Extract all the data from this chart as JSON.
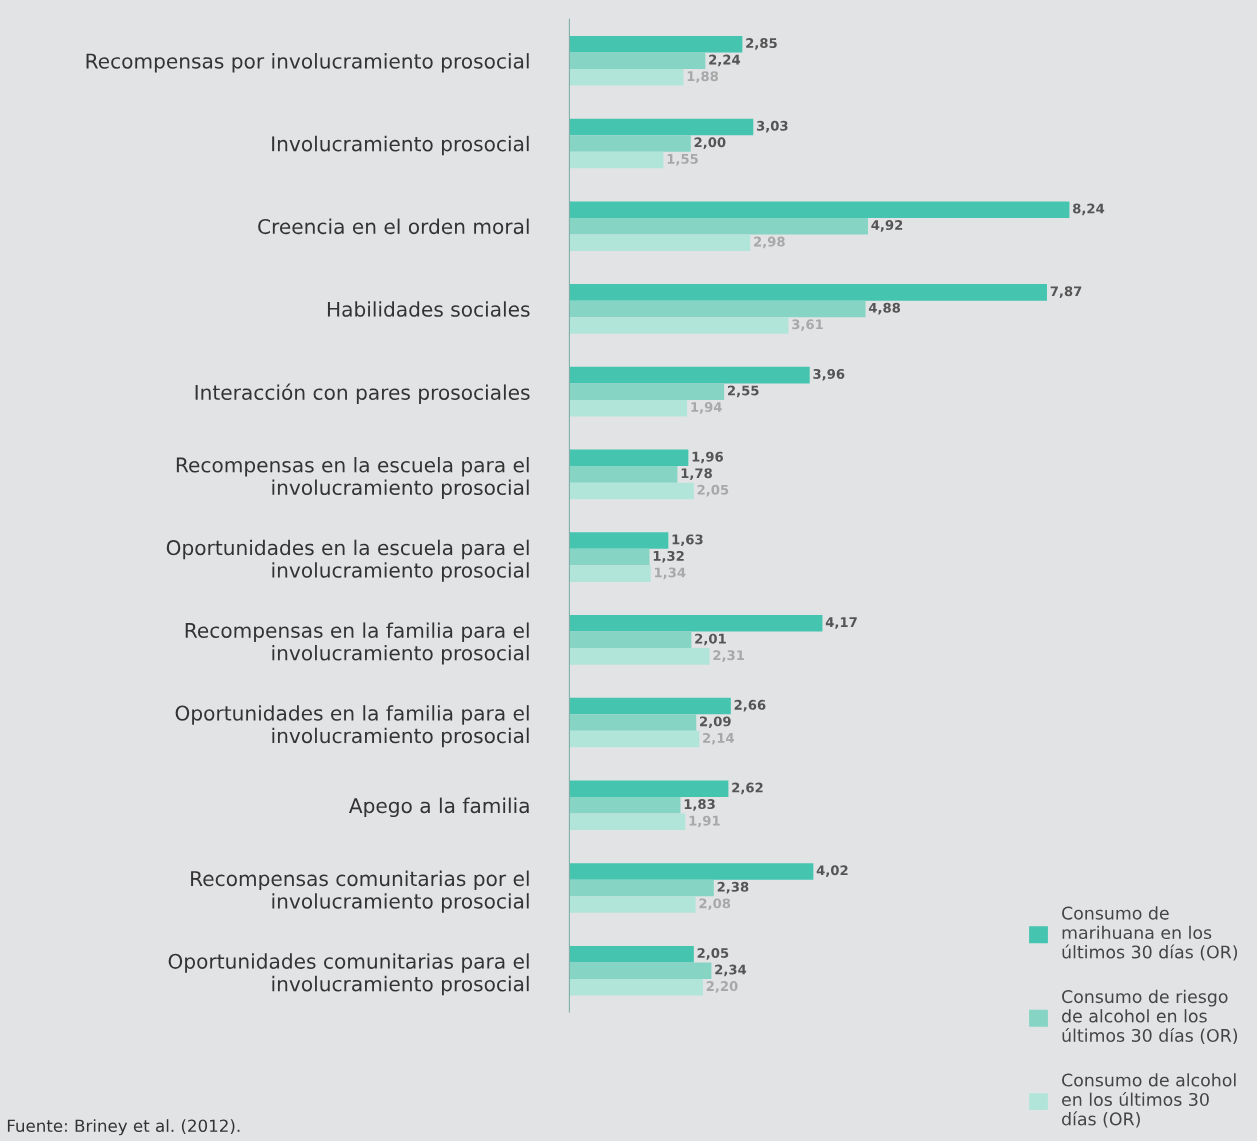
{
  "chart_data": {
    "type": "bar",
    "orientation": "horizontal",
    "categories": [
      "Recompensas por involucramiento prosocial",
      "Involucramiento prosocial",
      "Creencia en el orden moral",
      "Habilidades sociales",
      "Interacción con pares prosociales",
      "Recompensas en la escuela para el\ninvolucramiento prosocial",
      "Oportunidades en la escuela para el\ninvolucramiento prosocial",
      "Recompensas en la familia para el\ninvolucramiento prosocial",
      "Oportunidades en la familia para el\ninvolucramiento prosocial",
      "Apego a la familia",
      "Recompensas comunitarias por el\ninvolucramiento prosocial",
      "Oportunidades comunitarias para el\ninvolucramiento prosocial"
    ],
    "series": [
      {
        "name": "Consumo de\nmarihuana en los\núltimos 30 días (OR)",
        "color": "#45c4b0",
        "values": [
          2.85,
          3.03,
          8.24,
          7.87,
          3.96,
          1.96,
          1.63,
          4.17,
          2.66,
          2.62,
          4.02,
          2.05
        ],
        "value_labels": [
          "2,85",
          "3,03",
          "8,24",
          "7,87",
          "3,96",
          "1,96",
          "1,63",
          "4,17",
          "2,66",
          "2,62",
          "4,02",
          "2,05"
        ]
      },
      {
        "name": "Consumo de riesgo\nde alcohol en los\núltimos 30 días (OR)",
        "color": "#86d5c4",
        "values": [
          2.24,
          2.0,
          4.92,
          4.88,
          2.55,
          1.78,
          1.32,
          2.01,
          2.09,
          1.83,
          2.38,
          2.34
        ],
        "value_labels": [
          "2,24",
          "2,00",
          "4,92",
          "4,88",
          "2,55",
          "1,78",
          "1,32",
          "2,01",
          "2,09",
          "1,83",
          "2,38",
          "2,34"
        ]
      },
      {
        "name": "Consumo de alcohol\nen los últimos 30\ndías (OR)",
        "color": "#b2e5da",
        "values": [
          1.88,
          1.55,
          2.98,
          3.61,
          1.94,
          2.05,
          1.34,
          2.31,
          2.14,
          1.91,
          2.08,
          2.2
        ],
        "value_labels": [
          "1,88",
          "1,55",
          "2,98",
          "3,61",
          "1,94",
          "2,05",
          "1,34",
          "2,31",
          "2,14",
          "1,91",
          "2,08",
          "2,20"
        ]
      }
    ],
    "legend": "bottom right",
    "grid": false,
    "annotations": [
      "Fuente: Briney et al. (2012)."
    ]
  }
}
